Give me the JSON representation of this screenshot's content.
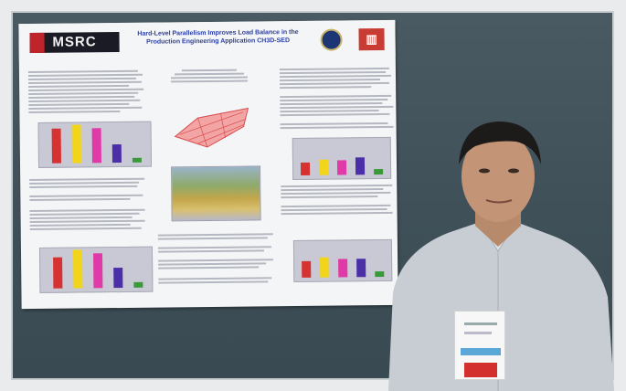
{
  "poster": {
    "logo_text": "MSRC",
    "title_line1": "Hard-Level Parallelism Improves Load Balance in the",
    "title_line2": "Production Engineering Application CH3D-SED"
  },
  "colors": {
    "board": "#435359",
    "poster_title": "#2b3fa3",
    "bar_red": "#d73232",
    "bar_yellow": "#f2d51a",
    "bar_magenta": "#e03aa8",
    "bar_purple": "#4b2fa8",
    "bar_green": "#3a9a3a"
  },
  "icons": [
    "navy-seal-icon",
    "army-engineer-castle-icon"
  ]
}
